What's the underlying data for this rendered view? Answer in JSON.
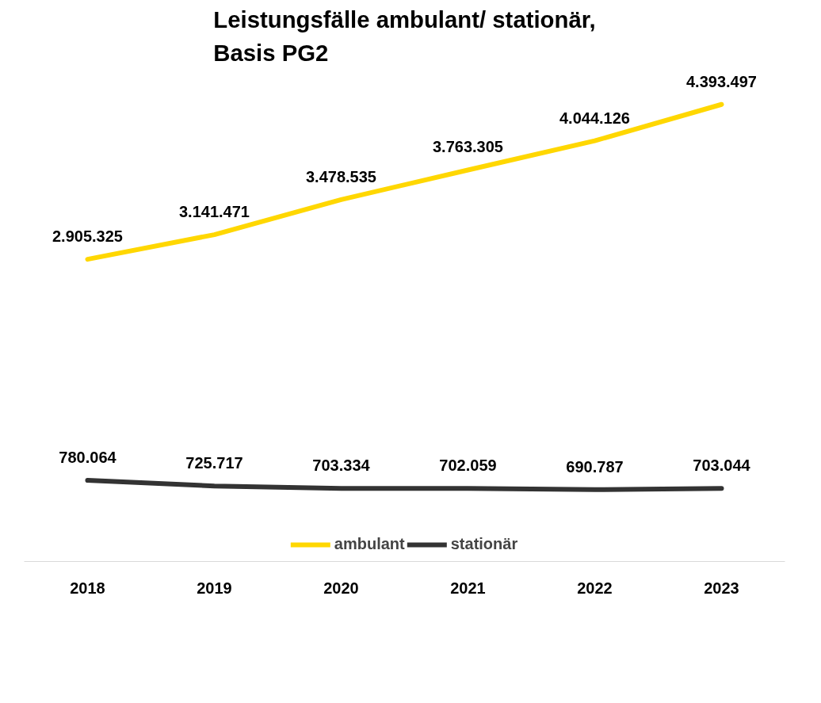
{
  "chart_data": {
    "type": "line",
    "title": "Leistungsfälle ambulant/ stationär,\nBasis PG2",
    "categories": [
      "2018",
      "2019",
      "2020",
      "2021",
      "2022",
      "2023"
    ],
    "series": [
      {
        "name": "ambulant",
        "color": "#ffd700",
        "values": [
          2905325,
          3141471,
          3478535,
          3763305,
          4044126,
          4393497
        ],
        "value_labels": [
          "2.905.325",
          "3.141.471",
          "3.478.535",
          "3.763.305",
          "4.044.126",
          "4.393.497"
        ]
      },
      {
        "name": "stationär",
        "color": "#333333",
        "values": [
          780064,
          725717,
          703334,
          702059,
          690787,
          703044
        ],
        "value_labels": [
          "780.064",
          "725.717",
          "703.334",
          "702.059",
          "690.787",
          "703.044"
        ]
      }
    ],
    "grid": false,
    "legend": "bottom",
    "marker": "none",
    "line_style": "solid",
    "tick_labels": "x"
  }
}
